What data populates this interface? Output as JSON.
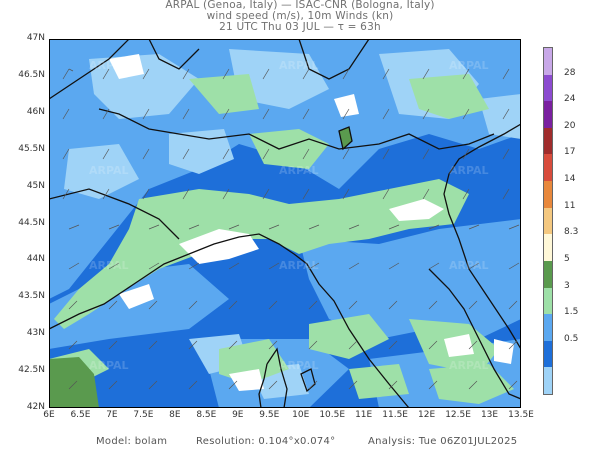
{
  "header": {
    "line1": "ARPAL (Genoa, Italy)  —  ISAC-CNR (Bologna, Italy)",
    "line2": "wind speed (m/s), 10m Winds (kn)",
    "line3": "21 UTC Thu 03 JUL  —  τ = 63h"
  },
  "map": {
    "lat_ticks": [
      "47N",
      "46.5N",
      "46N",
      "45.5N",
      "45N",
      "44.5N",
      "44N",
      "43.5N",
      "43N",
      "42.5N",
      "42N"
    ],
    "lon_ticks": [
      "6E",
      "6.5E",
      "7E",
      "7.5E",
      "8E",
      "8.5E",
      "9E",
      "9.5E",
      "10E",
      "10.5E",
      "11E",
      "11.5E",
      "12E",
      "12.5E",
      "13E",
      "13.5E"
    ],
    "watermark": "ARPAL",
    "colors": {
      "sea_land_low": "#1e6fd9",
      "mid": "#5ba8f0",
      "light": "#9fd3f7",
      "green": "#9ee0a8",
      "white": "#ffffff",
      "dark_green": "#5a9a4e",
      "coast": "#111111"
    }
  },
  "colorbar": {
    "labels": [
      "28",
      "24",
      "20",
      "17",
      "14",
      "11",
      "8.3",
      "5",
      "3",
      "1.5",
      "0.5"
    ],
    "colors": [
      "#c8a8e8",
      "#8c4bd0",
      "#7a20a0",
      "#a02c2c",
      "#d84c3c",
      "#e8883c",
      "#f4c880",
      "#fff8d8",
      "#5a9a4e",
      "#9ee0a8",
      "#5ba8f0",
      "#1e6fd9",
      "#9fd3f7"
    ]
  },
  "footer": {
    "model_label": "Model:",
    "model_value": "bolam",
    "resolution_label": "Resolution:",
    "resolution_value": "0.104°x0.074°",
    "analysis_label": "Analysis:",
    "analysis_value": "Tue 06Z01JUL2025"
  }
}
